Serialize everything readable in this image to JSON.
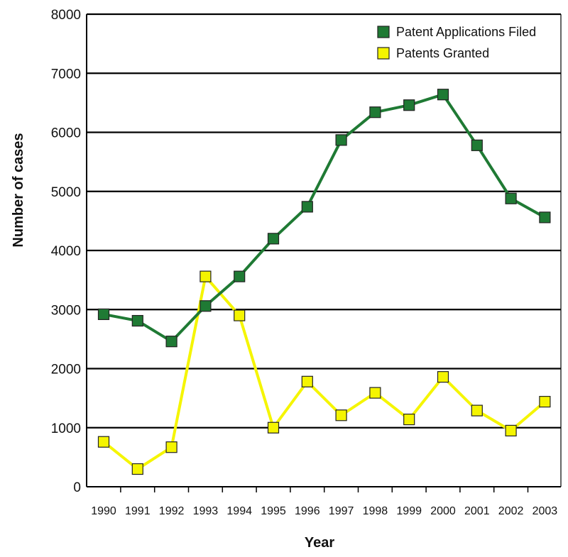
{
  "chart_data": {
    "type": "line",
    "xlabel": "Year",
    "ylabel": "Number of cases",
    "ylim": [
      0,
      8000
    ],
    "yticks": [
      0,
      1000,
      2000,
      3000,
      4000,
      5000,
      6000,
      7000,
      8000
    ],
    "categories": [
      "1990",
      "1991",
      "1992",
      "1993",
      "1994",
      "1995",
      "1996",
      "1997",
      "1998",
      "1999",
      "2000",
      "2001",
      "2002",
      "2003"
    ],
    "grid": "horizontal",
    "legend_position": "top-right",
    "series": [
      {
        "name": "Patent Applications Filed",
        "color": "#1f7a34",
        "marker_fill": "#1f7a34",
        "marker": "square",
        "values": [
          2920,
          2810,
          2460,
          3060,
          3560,
          4200,
          4740,
          5870,
          6340,
          6460,
          6640,
          5780,
          4880,
          4560
        ]
      },
      {
        "name": "Patents Granted",
        "color": "#f5f500",
        "marker_fill": "#f5f500",
        "marker": "square",
        "values": [
          760,
          300,
          670,
          3560,
          2900,
          1000,
          1780,
          1210,
          1590,
          1140,
          1860,
          1290,
          950,
          1440
        ]
      }
    ]
  }
}
